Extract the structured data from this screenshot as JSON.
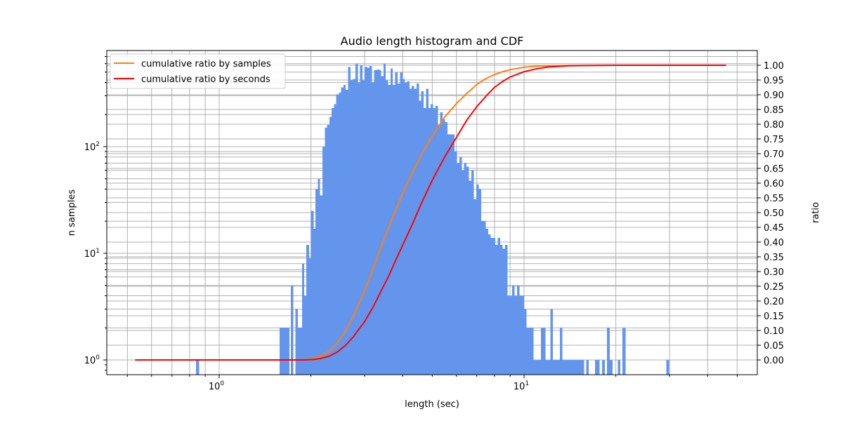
{
  "chart_data": {
    "type": "bar+line",
    "title": "Audio length histogram and CDF",
    "xlabel": "length (sec)",
    "ylabel_left": "n samples",
    "ylabel_right": "ratio",
    "xscale": "log",
    "yscale_left": "log",
    "xlim": [
      0.43,
      54
    ],
    "ylim_left": [
      0.75,
      820
    ],
    "ylim_right": [
      -0.05,
      1.05
    ],
    "grid": true,
    "x_tick_labels": [
      "10^0",
      "10^1"
    ],
    "y_left_tick_labels": [
      "10^0",
      "10^1",
      "10^2"
    ],
    "y_right_ticks": [
      0.0,
      0.05,
      0.1,
      0.15,
      0.2,
      0.25,
      0.3,
      0.35,
      0.4,
      0.45,
      0.5,
      0.55,
      0.6,
      0.65,
      0.7,
      0.75,
      0.8,
      0.85,
      0.9,
      0.95,
      1.0
    ],
    "y_right_tick_labels": [
      "0.00",
      "0.05",
      "0.10",
      "0.15",
      "0.20",
      "0.25",
      "0.30",
      "0.35",
      "0.40",
      "0.45",
      "0.50",
      "0.55",
      "0.60",
      "0.65",
      "0.70",
      "0.75",
      "0.80",
      "0.85",
      "0.90",
      "0.95",
      "1.00"
    ],
    "legend": {
      "position": "upper left",
      "entries": [
        {
          "label": "cumulative ratio by samples",
          "color": "#ff7f0e"
        },
        {
          "label": "cumulative ratio by seconds",
          "color": "#ff0000"
        }
      ]
    },
    "histogram": {
      "color": "#6495ed",
      "bins": [
        {
          "x0": 0.84,
          "x1": 0.86,
          "count": 1
        },
        {
          "x0": 1.58,
          "x1": 1.66,
          "count": 2
        },
        {
          "x0": 1.66,
          "x1": 1.7,
          "count": 2
        },
        {
          "x0": 1.72,
          "x1": 1.75,
          "count": 5
        },
        {
          "x0": 1.78,
          "x1": 1.81,
          "count": 3
        },
        {
          "x0": 1.81,
          "x1": 1.87,
          "count": 2
        },
        {
          "x0": 1.87,
          "x1": 1.9,
          "count": 8
        },
        {
          "x0": 1.9,
          "x1": 1.93,
          "count": 4
        },
        {
          "x0": 1.93,
          "x1": 1.97,
          "count": 12
        },
        {
          "x0": 1.97,
          "x1": 2.0,
          "count": 9
        },
        {
          "x0": 2.0,
          "x1": 2.04,
          "count": 25
        },
        {
          "x0": 2.04,
          "x1": 2.07,
          "count": 17
        },
        {
          "x0": 2.07,
          "x1": 2.11,
          "count": 40
        },
        {
          "x0": 2.11,
          "x1": 2.14,
          "count": 50
        },
        {
          "x0": 2.14,
          "x1": 2.18,
          "count": 35
        },
        {
          "x0": 2.18,
          "x1": 2.22,
          "count": 100
        },
        {
          "x0": 2.22,
          "x1": 2.26,
          "count": 150
        },
        {
          "x0": 2.26,
          "x1": 2.3,
          "count": 160
        },
        {
          "x0": 2.3,
          "x1": 2.34,
          "count": 190
        },
        {
          "x0": 2.34,
          "x1": 2.38,
          "count": 230
        },
        {
          "x0": 2.38,
          "x1": 2.42,
          "count": 250
        },
        {
          "x0": 2.42,
          "x1": 2.47,
          "count": 310
        },
        {
          "x0": 2.47,
          "x1": 2.51,
          "count": 320
        },
        {
          "x0": 2.51,
          "x1": 2.56,
          "count": 360
        },
        {
          "x0": 2.56,
          "x1": 2.6,
          "count": 380
        },
        {
          "x0": 2.6,
          "x1": 2.65,
          "count": 340
        },
        {
          "x0": 2.65,
          "x1": 2.7,
          "count": 560
        },
        {
          "x0": 2.7,
          "x1": 2.75,
          "count": 420
        },
        {
          "x0": 2.75,
          "x1": 2.8,
          "count": 430
        },
        {
          "x0": 2.8,
          "x1": 2.85,
          "count": 600
        },
        {
          "x0": 2.85,
          "x1": 2.9,
          "count": 400
        },
        {
          "x0": 2.9,
          "x1": 2.95,
          "count": 580
        },
        {
          "x0": 2.95,
          "x1": 3.0,
          "count": 420
        },
        {
          "x0": 3.0,
          "x1": 3.06,
          "count": 560
        },
        {
          "x0": 3.06,
          "x1": 3.11,
          "count": 550
        },
        {
          "x0": 3.11,
          "x1": 3.17,
          "count": 570
        },
        {
          "x0": 3.17,
          "x1": 3.22,
          "count": 400
        },
        {
          "x0": 3.22,
          "x1": 3.28,
          "count": 520
        },
        {
          "x0": 3.28,
          "x1": 3.34,
          "count": 530
        },
        {
          "x0": 3.34,
          "x1": 3.4,
          "count": 520
        },
        {
          "x0": 3.4,
          "x1": 3.46,
          "count": 460
        },
        {
          "x0": 3.46,
          "x1": 3.52,
          "count": 600
        },
        {
          "x0": 3.52,
          "x1": 3.58,
          "count": 420
        },
        {
          "x0": 3.58,
          "x1": 3.65,
          "count": 380
        },
        {
          "x0": 3.65,
          "x1": 3.71,
          "count": 540
        },
        {
          "x0": 3.71,
          "x1": 3.78,
          "count": 380
        },
        {
          "x0": 3.78,
          "x1": 3.85,
          "count": 500
        },
        {
          "x0": 3.85,
          "x1": 3.92,
          "count": 390
        },
        {
          "x0": 3.92,
          "x1": 3.99,
          "count": 500
        },
        {
          "x0": 3.99,
          "x1": 4.06,
          "count": 430
        },
        {
          "x0": 4.06,
          "x1": 4.13,
          "count": 400
        },
        {
          "x0": 4.13,
          "x1": 4.21,
          "count": 410
        },
        {
          "x0": 4.21,
          "x1": 4.28,
          "count": 350
        },
        {
          "x0": 4.28,
          "x1": 4.36,
          "count": 370
        },
        {
          "x0": 4.36,
          "x1": 4.44,
          "count": 350
        },
        {
          "x0": 4.44,
          "x1": 4.52,
          "count": 390
        },
        {
          "x0": 4.52,
          "x1": 4.6,
          "count": 270
        },
        {
          "x0": 4.6,
          "x1": 4.68,
          "count": 330
        },
        {
          "x0": 4.68,
          "x1": 4.77,
          "count": 230
        },
        {
          "x0": 4.77,
          "x1": 4.86,
          "count": 350
        },
        {
          "x0": 4.86,
          "x1": 4.94,
          "count": 230
        },
        {
          "x0": 4.94,
          "x1": 5.03,
          "count": 250
        },
        {
          "x0": 5.03,
          "x1": 5.13,
          "count": 230
        },
        {
          "x0": 5.13,
          "x1": 5.22,
          "count": 240
        },
        {
          "x0": 5.22,
          "x1": 5.31,
          "count": 160
        },
        {
          "x0": 5.31,
          "x1": 5.41,
          "count": 210
        },
        {
          "x0": 5.41,
          "x1": 5.51,
          "count": 180
        },
        {
          "x0": 5.51,
          "x1": 5.61,
          "count": 170
        },
        {
          "x0": 5.61,
          "x1": 5.71,
          "count": 130
        },
        {
          "x0": 5.71,
          "x1": 5.82,
          "count": 130
        },
        {
          "x0": 5.82,
          "x1": 5.92,
          "count": 130
        },
        {
          "x0": 5.92,
          "x1": 6.03,
          "count": 90
        },
        {
          "x0": 6.03,
          "x1": 6.14,
          "count": 70
        },
        {
          "x0": 6.14,
          "x1": 6.25,
          "count": 80
        },
        {
          "x0": 6.25,
          "x1": 6.36,
          "count": 60
        },
        {
          "x0": 6.36,
          "x1": 6.48,
          "count": 70
        },
        {
          "x0": 6.48,
          "x1": 6.6,
          "count": 65
        },
        {
          "x0": 6.6,
          "x1": 6.72,
          "count": 48
        },
        {
          "x0": 6.72,
          "x1": 6.84,
          "count": 60
        },
        {
          "x0": 6.84,
          "x1": 6.97,
          "count": 32
        },
        {
          "x0": 6.97,
          "x1": 7.1,
          "count": 44
        },
        {
          "x0": 7.1,
          "x1": 7.23,
          "count": 40
        },
        {
          "x0": 7.23,
          "x1": 7.36,
          "count": 20
        },
        {
          "x0": 7.36,
          "x1": 7.49,
          "count": 20
        },
        {
          "x0": 7.49,
          "x1": 7.63,
          "count": 17
        },
        {
          "x0": 7.63,
          "x1": 7.77,
          "count": 15
        },
        {
          "x0": 7.77,
          "x1": 7.91,
          "count": 14
        },
        {
          "x0": 7.91,
          "x1": 8.05,
          "count": 14
        },
        {
          "x0": 8.05,
          "x1": 8.2,
          "count": 12
        },
        {
          "x0": 8.2,
          "x1": 8.35,
          "count": 14
        },
        {
          "x0": 8.35,
          "x1": 8.5,
          "count": 12
        },
        {
          "x0": 8.5,
          "x1": 8.66,
          "count": 11
        },
        {
          "x0": 8.66,
          "x1": 8.82,
          "count": 12
        },
        {
          "x0": 8.82,
          "x1": 8.98,
          "count": 4
        },
        {
          "x0": 8.98,
          "x1": 9.14,
          "count": 4
        },
        {
          "x0": 9.14,
          "x1": 9.31,
          "count": 5
        },
        {
          "x0": 9.31,
          "x1": 9.48,
          "count": 4
        },
        {
          "x0": 9.48,
          "x1": 9.65,
          "count": 5
        },
        {
          "x0": 9.65,
          "x1": 9.82,
          "count": 4
        },
        {
          "x0": 9.82,
          "x1": 10.0,
          "count": 4
        },
        {
          "x0": 10.0,
          "x1": 10.18,
          "count": 3
        },
        {
          "x0": 10.18,
          "x1": 10.37,
          "count": 2
        },
        {
          "x0": 10.37,
          "x1": 10.56,
          "count": 2
        },
        {
          "x0": 10.56,
          "x1": 10.75,
          "count": 2
        },
        {
          "x0": 10.75,
          "x1": 10.95,
          "count": 1
        },
        {
          "x0": 10.95,
          "x1": 11.15,
          "count": 1
        },
        {
          "x0": 11.15,
          "x1": 11.35,
          "count": 1
        },
        {
          "x0": 11.35,
          "x1": 11.56,
          "count": 2
        },
        {
          "x0": 11.56,
          "x1": 11.77,
          "count": 2
        },
        {
          "x0": 11.77,
          "x1": 11.98,
          "count": 1
        },
        {
          "x0": 11.98,
          "x1": 12.2,
          "count": 1
        },
        {
          "x0": 12.2,
          "x1": 12.42,
          "count": 3
        },
        {
          "x0": 12.42,
          "x1": 12.65,
          "count": 1
        },
        {
          "x0": 12.65,
          "x1": 12.88,
          "count": 1
        },
        {
          "x0": 12.88,
          "x1": 13.12,
          "count": 1
        },
        {
          "x0": 13.12,
          "x1": 13.36,
          "count": 2
        },
        {
          "x0": 13.36,
          "x1": 13.6,
          "count": 1
        },
        {
          "x0": 13.6,
          "x1": 13.85,
          "count": 1
        },
        {
          "x0": 13.85,
          "x1": 14.1,
          "count": 1
        },
        {
          "x0": 14.1,
          "x1": 14.36,
          "count": 1
        },
        {
          "x0": 14.36,
          "x1": 14.62,
          "count": 1
        },
        {
          "x0": 14.62,
          "x1": 14.89,
          "count": 1
        },
        {
          "x0": 14.89,
          "x1": 15.16,
          "count": 1
        },
        {
          "x0": 15.16,
          "x1": 15.44,
          "count": 1
        },
        {
          "x0": 15.44,
          "x1": 15.72,
          "count": 1
        },
        {
          "x0": 16.0,
          "x1": 16.3,
          "count": 1
        },
        {
          "x0": 17.1,
          "x1": 17.4,
          "count": 1
        },
        {
          "x0": 17.4,
          "x1": 17.7,
          "count": 1
        },
        {
          "x0": 18.0,
          "x1": 18.4,
          "count": 1
        },
        {
          "x0": 18.7,
          "x1": 19.1,
          "count": 2
        },
        {
          "x0": 19.1,
          "x1": 19.5,
          "count": 1
        },
        {
          "x0": 20.3,
          "x1": 20.7,
          "count": 1
        },
        {
          "x0": 21.0,
          "x1": 21.5,
          "count": 2
        },
        {
          "x0": 29.3,
          "x1": 29.9,
          "count": 1
        }
      ]
    },
    "series": [
      {
        "name": "cumulative ratio by samples",
        "color": "#ff7f0e",
        "x": [
          0.53,
          1.0,
          1.5,
          1.9,
          2.05,
          2.15,
          2.3,
          2.45,
          2.6,
          2.75,
          2.9,
          3.0,
          3.2,
          3.4,
          3.6,
          3.8,
          4.0,
          4.3,
          4.6,
          5.0,
          5.5,
          6.0,
          6.5,
          7.0,
          7.5,
          8.0,
          8.5,
          9.0,
          10.0,
          11.0,
          12.0,
          14.0,
          16.0,
          20.0,
          30.0,
          46.0
        ],
        "y": [
          0.0,
          0.0,
          0.0,
          0.001,
          0.005,
          0.012,
          0.03,
          0.06,
          0.1,
          0.145,
          0.2,
          0.235,
          0.31,
          0.385,
          0.45,
          0.51,
          0.565,
          0.635,
          0.695,
          0.76,
          0.825,
          0.87,
          0.905,
          0.935,
          0.955,
          0.968,
          0.978,
          0.985,
          0.993,
          0.997,
          0.998,
          0.999,
          0.9995,
          1.0,
          1.0,
          1.0
        ]
      },
      {
        "name": "cumulative ratio by seconds",
        "color": "#ff0000",
        "x": [
          0.53,
          1.0,
          1.5,
          1.9,
          2.05,
          2.15,
          2.3,
          2.45,
          2.6,
          2.75,
          2.9,
          3.0,
          3.2,
          3.4,
          3.6,
          3.8,
          4.0,
          4.3,
          4.6,
          5.0,
          5.5,
          6.0,
          6.5,
          7.0,
          7.5,
          8.0,
          8.5,
          9.0,
          10.0,
          11.0,
          12.0,
          14.0,
          16.0,
          20.0,
          30.0,
          46.0
        ],
        "y": [
          0.0,
          0.0,
          0.0,
          0.0,
          0.002,
          0.005,
          0.013,
          0.028,
          0.05,
          0.078,
          0.11,
          0.13,
          0.18,
          0.235,
          0.285,
          0.34,
          0.39,
          0.46,
          0.53,
          0.61,
          0.69,
          0.755,
          0.815,
          0.86,
          0.895,
          0.925,
          0.945,
          0.96,
          0.978,
          0.988,
          0.994,
          0.998,
          0.999,
          1.0,
          1.0,
          1.0
        ]
      }
    ]
  }
}
